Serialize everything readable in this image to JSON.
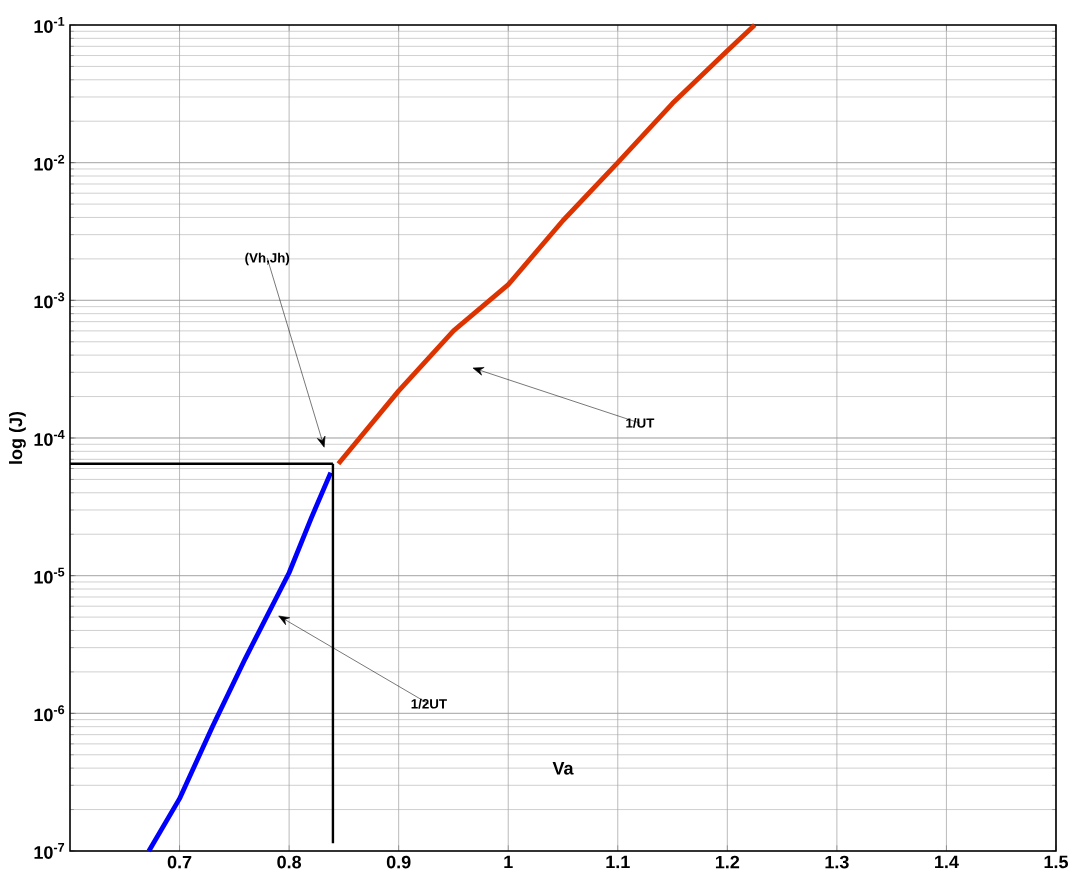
{
  "chart_data": {
    "type": "line",
    "xlabel": "Va",
    "ylabel": "log (J)",
    "xlim": [
      0.6,
      1.5
    ],
    "ylim": [
      1e-07,
      0.1
    ],
    "log": "y",
    "grid": true,
    "marker": "none",
    "line_style": "solid",
    "xticks": [
      0.7,
      0.8,
      0.9,
      1,
      1.1,
      1.2,
      1.3,
      1.4,
      1.5
    ],
    "yticks": [
      {
        "value": 1e-07,
        "label": "10$^{-7}$"
      },
      {
        "value": 1e-06,
        "label": "10$^{-6}$"
      },
      {
        "value": 1e-05,
        "label": "10$^{-5}$"
      },
      {
        "value": 0.0001,
        "label": "10$^{-4}$"
      },
      {
        "value": 0.001,
        "label": "10$^{-3}$"
      },
      {
        "value": 0.01,
        "label": "10$^{-2}$"
      },
      {
        "value": 0.1,
        "label": "10$^{-1}$"
      }
    ],
    "series": [
      {
        "color": "#0000ff",
        "x": [
          0.672,
          0.7,
          0.73,
          0.76,
          0.8,
          0.82,
          0.838
        ],
        "values": [
          1e-07,
          2.4e-07,
          8e-07,
          2.5e-06,
          1.05e-05,
          2.6e-05,
          5.6e-05
        ]
      },
      {
        "color": "#dd3300",
        "x": [
          0.845,
          0.9,
          0.95,
          1.0,
          1.05,
          1.1,
          1.15,
          1.2,
          1.225
        ],
        "values": [
          6.5e-05,
          0.00022,
          0.0006,
          0.0013,
          0.0038,
          0.01,
          0.027,
          0.065,
          0.1
        ]
      },
      {
        "color": "#000000",
        "x": [
          0.6,
          0.84
        ],
        "values": [
          6.5e-05,
          6.5e-05
        ]
      },
      {
        "color": "#000000",
        "x": [
          0.84,
          0.84
        ],
        "values": [
          6.5e-05,
          1.14e-07
        ]
      }
    ],
    "annotations": [
      "(Vh,Jh)",
      "1/UT",
      "1/2UT"
    ]
  }
}
